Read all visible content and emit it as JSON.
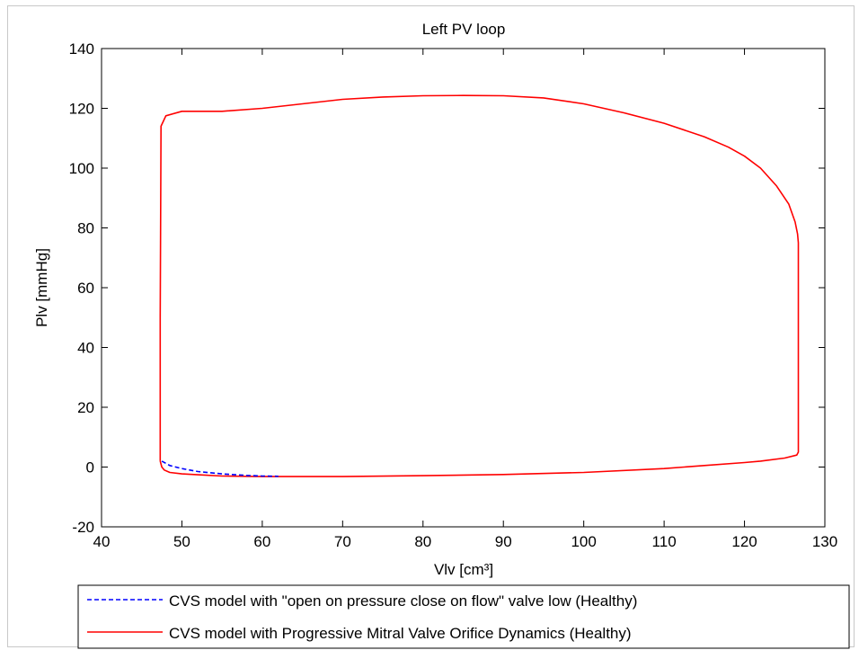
{
  "chart_data": {
    "type": "line",
    "title": "Left PV loop",
    "xlabel": "Vlv [cm³]",
    "ylabel": "Plv [mmHg]",
    "xlim": [
      40,
      130
    ],
    "ylim": [
      -20,
      140
    ],
    "xticks": [
      40,
      50,
      60,
      70,
      80,
      90,
      100,
      110,
      120,
      130
    ],
    "yticks": [
      -20,
      0,
      20,
      40,
      60,
      80,
      100,
      120,
      140
    ],
    "grid": false,
    "legend_position": "bottom",
    "series": [
      {
        "name": "CVS model with \"open on pressure close on flow\" valve low (Healthy)",
        "color": "#0000ff",
        "style": "dashed",
        "x": [
          47.5,
          48.5,
          50,
          52,
          55,
          58,
          60,
          62
        ],
        "y": [
          2,
          0.5,
          -0.5,
          -1.5,
          -2.3,
          -2.8,
          -3.0,
          -3.1
        ]
      },
      {
        "name": "CVS model with Progressive Mitral Valve Orifice Dynamics (Healthy)",
        "color": "#ff0000",
        "style": "solid",
        "x": [
          47.3,
          47.3,
          47.4,
          48,
          50,
          55,
          60,
          65,
          70,
          75,
          80,
          85,
          90,
          95,
          100,
          105,
          110,
          115,
          118,
          120,
          122,
          124,
          125.5,
          126.3,
          126.6,
          126.7,
          126.7,
          126.7,
          126.5,
          125,
          122,
          120,
          115,
          110,
          100,
          90,
          80,
          70,
          60,
          55,
          52,
          50,
          48.5,
          47.8,
          47.5,
          47.3
        ],
        "y": [
          2,
          50,
          114,
          117.5,
          119,
          119,
          120,
          121.5,
          123,
          123.8,
          124.2,
          124.3,
          124.2,
          123.5,
          121.5,
          118.5,
          115,
          110.5,
          107,
          104,
          100,
          94,
          88,
          82,
          78,
          75,
          40,
          5,
          4,
          3,
          2,
          1.5,
          0.5,
          -0.5,
          -1.8,
          -2.5,
          -2.9,
          -3.2,
          -3.2,
          -3.0,
          -2.6,
          -2.3,
          -1.8,
          -1.0,
          0,
          2
        ]
      }
    ]
  }
}
